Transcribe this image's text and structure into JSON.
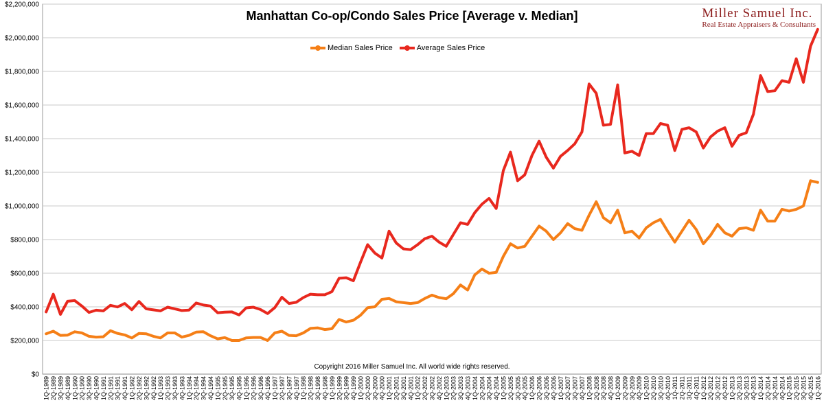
{
  "chart_data": {
    "type": "line",
    "title": "Manhattan Co-op/Condo Sales Price [Average v. Median]",
    "xlabel": "",
    "ylabel": "",
    "ylim": [
      0,
      2200000
    ],
    "yticks": [
      0,
      200000,
      400000,
      600000,
      800000,
      1000000,
      1200000,
      1400000,
      1600000,
      1800000,
      2000000,
      2200000
    ],
    "ytick_labels": [
      "$0",
      "$200,000",
      "$400,000",
      "$600,000",
      "$800,000",
      "$1,000,000",
      "$1,200,000",
      "$1,400,000",
      "$1,600,000",
      "$1,800,000",
      "$2,000,000",
      "$2,200,000"
    ],
    "grid": true,
    "legend": "top-center",
    "start_year": 1989,
    "start_quarter": 1,
    "series": [
      {
        "name": "Median Sales Price",
        "color": "#f57f17",
        "values": [
          240000,
          255000,
          230000,
          232000,
          252000,
          245000,
          225000,
          220000,
          222000,
          258000,
          242000,
          233000,
          215000,
          242000,
          240000,
          225000,
          215000,
          245000,
          245000,
          220000,
          230000,
          250000,
          252000,
          228000,
          210000,
          217000,
          200000,
          200000,
          215000,
          218000,
          218000,
          200000,
          245000,
          255000,
          230000,
          228000,
          245000,
          272000,
          275000,
          265000,
          270000,
          325000,
          310000,
          320000,
          350000,
          395000,
          400000,
          445000,
          450000,
          430000,
          425000,
          420000,
          425000,
          450000,
          470000,
          455000,
          448000,
          478000,
          530000,
          500000,
          590000,
          625000,
          600000,
          605000,
          700000,
          775000,
          750000,
          760000,
          820000,
          880000,
          850000,
          800000,
          840000,
          895000,
          865000,
          855000,
          945000,
          1025000,
          930000,
          900000,
          975000,
          840000,
          850000,
          810000,
          870000,
          900000,
          920000,
          850000,
          785000,
          850000,
          915000,
          860000,
          775000,
          825000,
          890000,
          840000,
          820000,
          865000,
          870000,
          855000,
          975000,
          910000,
          910000,
          980000,
          970000,
          980000,
          1000000,
          1150000,
          1140000
        ]
      },
      {
        "name": "Average Sales Price",
        "color": "#e8281e",
        "values": [
          370000,
          475000,
          355000,
          433000,
          437000,
          405000,
          367000,
          380000,
          376000,
          409000,
          399000,
          420000,
          383000,
          432000,
          388000,
          382000,
          376000,
          398000,
          388000,
          378000,
          381000,
          423000,
          411000,
          405000,
          365000,
          368000,
          370000,
          352000,
          394000,
          398000,
          384000,
          360000,
          395000,
          457000,
          420000,
          427000,
          455000,
          475000,
          472000,
          472000,
          490000,
          570000,
          573000,
          555000,
          665000,
          770000,
          720000,
          690000,
          850000,
          780000,
          745000,
          740000,
          770000,
          805000,
          820000,
          785000,
          760000,
          830000,
          900000,
          890000,
          960000,
          1010000,
          1045000,
          985000,
          1210000,
          1320000,
          1150000,
          1185000,
          1300000,
          1385000,
          1290000,
          1225000,
          1295000,
          1330000,
          1370000,
          1440000,
          1725000,
          1670000,
          1480000,
          1485000,
          1720000,
          1315000,
          1325000,
          1300000,
          1430000,
          1430000,
          1490000,
          1480000,
          1330000,
          1455000,
          1465000,
          1440000,
          1345000,
          1410000,
          1445000,
          1465000,
          1355000,
          1420000,
          1435000,
          1545000,
          1775000,
          1680000,
          1685000,
          1745000,
          1735000,
          1875000,
          1735000,
          1950000,
          2050000
        ]
      }
    ]
  },
  "legend": {
    "median_label": "Median Sales Price",
    "average_label": "Average Sales Price"
  },
  "brand": {
    "name": "Miller Samuel Inc.",
    "subtitle": "Real Estate Appraisers & Consultants"
  },
  "copyright": "Copyright 2016 Miller Samuel Inc.  All world wide rights reserved."
}
